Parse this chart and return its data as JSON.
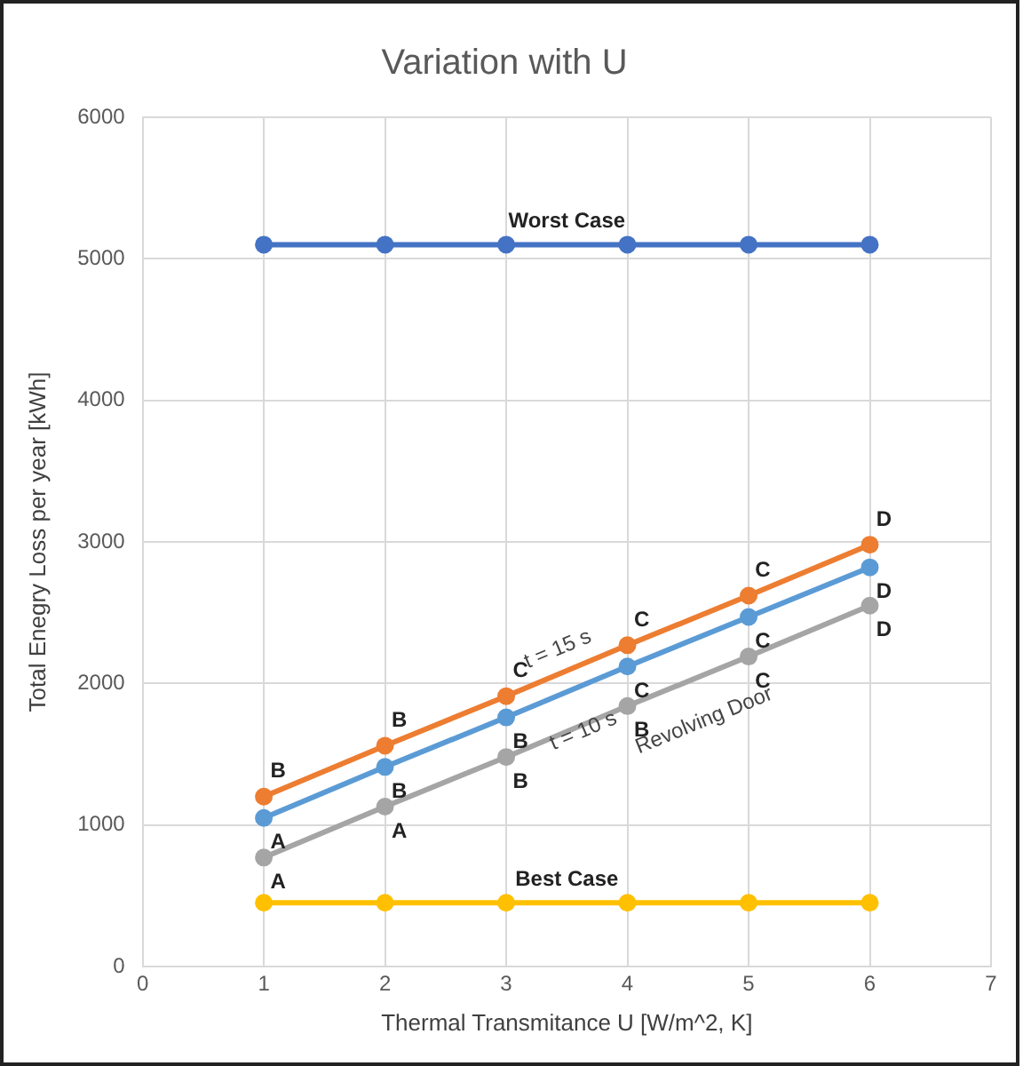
{
  "chart_data": {
    "type": "line",
    "title": "Variation with U",
    "xlabel": "Thermal Transmitance U [W/m^2, K]",
    "ylabel": "Total Enegry Loss per year [kWh]",
    "x": [
      1,
      2,
      3,
      4,
      5,
      6
    ],
    "series": [
      {
        "color": "#4472c4",
        "values": [
          5100,
          5100,
          5100,
          5100,
          5100,
          5100
        ]
      },
      {
        "color": "#ed7d31",
        "values": [
          1200,
          1560,
          1910,
          2270,
          2620,
          2980
        ]
      },
      {
        "color": "#5b9bd5",
        "values": [
          1050,
          1410,
          1760,
          2120,
          2470,
          2820
        ]
      },
      {
        "color": "#a5a5a5",
        "values": [
          770,
          1130,
          1480,
          1840,
          2190,
          2550
        ]
      },
      {
        "color": "#ffc000",
        "values": [
          450,
          450,
          450,
          450,
          450,
          450
        ]
      }
    ],
    "xlim": [
      0,
      7
    ],
    "xticks": [
      0,
      1,
      2,
      3,
      4,
      5,
      6,
      7
    ],
    "ylim": [
      0,
      6000
    ],
    "yticks": [
      0,
      1000,
      2000,
      3000,
      4000,
      5000,
      6000
    ],
    "grid": true,
    "legend": false,
    "marker": "circle",
    "line_style": "solid",
    "annotations": [
      {
        "text": "Worst Case",
        "x": 3.5,
        "y": 5100
      },
      {
        "text": "Best Case",
        "x": 3.5,
        "y": 450
      },
      {
        "text": "t = 15 s",
        "x": 3.5,
        "y": 2090
      },
      {
        "text": "t = 10 s",
        "x": 3.5,
        "y": 1940
      },
      {
        "text": "Revolving Door",
        "x": 4.5,
        "y": 2015
      },
      {
        "text": "B",
        "x": 1,
        "y": 1200
      },
      {
        "text": "B",
        "x": 2,
        "y": 1560
      },
      {
        "text": "C",
        "x": 3,
        "y": 1910
      },
      {
        "text": "C",
        "x": 4,
        "y": 2270
      },
      {
        "text": "C",
        "x": 5,
        "y": 2620
      },
      {
        "text": "D",
        "x": 6,
        "y": 2980
      },
      {
        "text": "A",
        "x": 1,
        "y": 1050
      },
      {
        "text": "B",
        "x": 2,
        "y": 1410
      },
      {
        "text": "B",
        "x": 3,
        "y": 1760
      },
      {
        "text": "C",
        "x": 4,
        "y": 2120
      },
      {
        "text": "C",
        "x": 5,
        "y": 2470
      },
      {
        "text": "D",
        "x": 6,
        "y": 2820
      },
      {
        "text": "A",
        "x": 1,
        "y": 770
      },
      {
        "text": "A",
        "x": 2,
        "y": 1130
      },
      {
        "text": "B",
        "x": 3,
        "y": 1480
      },
      {
        "text": "B",
        "x": 4,
        "y": 1840
      },
      {
        "text": "C",
        "x": 5,
        "y": 2190
      },
      {
        "text": "D",
        "x": 6,
        "y": 2550
      }
    ]
  }
}
